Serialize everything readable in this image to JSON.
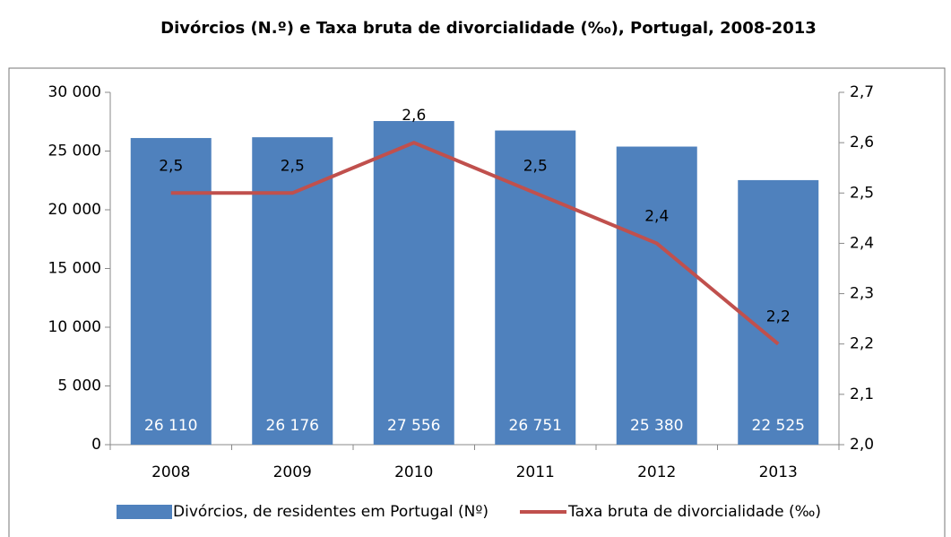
{
  "chart_data": {
    "type": "bar-line",
    "title": "Divórcios (N.º) e Taxa bruta de divorcialidade (‰), Portugal, 2008-2013",
    "categories": [
      "2008",
      "2009",
      "2010",
      "2011",
      "2012",
      "2013"
    ],
    "series": [
      {
        "name": "Divórcios, de residentes em Portugal (Nº)",
        "type": "bar",
        "color": "#4f81bd",
        "values": [
          26110,
          26176,
          27556,
          26751,
          25380,
          22525
        ],
        "value_labels": [
          "26 110",
          "26 176",
          "27 556",
          "26 751",
          "25 380",
          "22 525"
        ]
      },
      {
        "name": "Taxa bruta de divorcialidade (‰)",
        "type": "line",
        "color": "#c0504d",
        "axis": "y2",
        "values": [
          2.5,
          2.5,
          2.6,
          2.5,
          2.4,
          2.2
        ],
        "value_labels": [
          "2,5",
          "2,5",
          "2,6",
          "2,5",
          "2,4",
          "2,2"
        ]
      }
    ],
    "ylim": [
      0,
      30000
    ],
    "yticks": [
      0,
      {
        "value": 5000,
        "label": "5 000"
      },
      {
        "value": 10000,
        "label": "10 000"
      },
      {
        "value": 15000,
        "label": "15 000"
      },
      {
        "value": 20000,
        "label": "20 000"
      },
      {
        "value": 25000,
        "label": "25 000"
      },
      {
        "value": 30000,
        "label": "30 000"
      }
    ],
    "y2lim": [
      2.0,
      2.7
    ],
    "y2ticks": [
      {
        "value": 2.0,
        "label": "2,0"
      },
      {
        "value": 2.1,
        "label": "2,1"
      },
      {
        "value": 2.2,
        "label": "2,2"
      },
      {
        "value": 2.3,
        "label": "2,3"
      },
      {
        "value": 2.4,
        "label": "2,4"
      },
      {
        "value": 2.5,
        "label": "2,5"
      },
      {
        "value": 2.6,
        "label": "2,6"
      },
      {
        "value": 2.7,
        "label": "2,7"
      }
    ],
    "legend": "bottom"
  }
}
